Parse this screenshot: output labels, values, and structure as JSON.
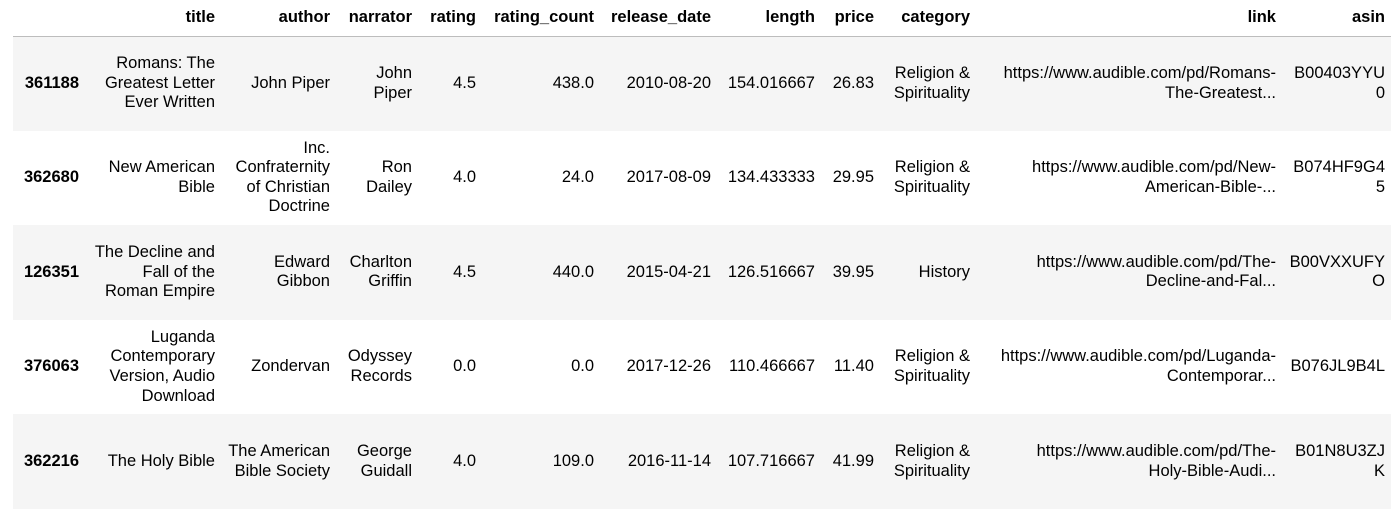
{
  "columns": {
    "index": "",
    "title": "title",
    "author": "author",
    "narrator": "narrator",
    "rating": "rating",
    "rating_count": "rating_count",
    "release_date": "release_date",
    "length": "length",
    "price": "price",
    "category": "category",
    "link": "link",
    "asin": "asin"
  },
  "rows": [
    {
      "index": "361188",
      "title": "Romans: The Greatest Letter Ever Written",
      "author": "John Piper",
      "narrator": "John Piper",
      "rating": "4.5",
      "rating_count": "438.0",
      "release_date": "2010-08-20",
      "length": "154.016667",
      "price": "26.83",
      "category": "Religion & Spirituality",
      "link_1": "https://www.audible.com/pd/Romans-",
      "link_2": "The-Greatest...",
      "asin": "B00403YYU0"
    },
    {
      "index": "362680",
      "title": "New American Bible",
      "author": "Inc. Confraternity of Christian Doctrine",
      "narrator": "Ron Dailey",
      "rating": "4.0",
      "rating_count": "24.0",
      "release_date": "2017-08-09",
      "length": "134.433333",
      "price": "29.95",
      "category": "Religion & Spirituality",
      "link_1": "https://www.audible.com/pd/New-",
      "link_2": "American-Bible-...",
      "asin": "B074HF9G45"
    },
    {
      "index": "126351",
      "title": "The Decline and Fall of the Roman Empire",
      "author": "Edward Gibbon",
      "narrator": "Charlton Griffin",
      "rating": "4.5",
      "rating_count": "440.0",
      "release_date": "2015-04-21",
      "length": "126.516667",
      "price": "39.95",
      "category": "History",
      "link_1": "https://www.audible.com/pd/The-",
      "link_2": "Decline-and-Fal...",
      "asin": "B00VXXUFYO"
    },
    {
      "index": "376063",
      "title": "Luganda Contemporary Version, Audio Download",
      "author": "Zondervan",
      "narrator": "Odyssey Records",
      "rating": "0.0",
      "rating_count": "0.0",
      "release_date": "2017-12-26",
      "length": "110.466667",
      "price": "11.40",
      "category": "Religion & Spirituality",
      "link_1": "https://www.audible.com/pd/Luganda-",
      "link_2": "Contemporar...",
      "asin": "B076JL9B4L"
    },
    {
      "index": "362216",
      "title": "The Holy Bible",
      "author": "The American Bible Society",
      "narrator": "George Guidall",
      "rating": "4.0",
      "rating_count": "109.0",
      "release_date": "2016-11-14",
      "length": "107.716667",
      "price": "41.99",
      "category": "Religion & Spirituality",
      "link_1": "https://www.audible.com/pd/The-",
      "link_2": "Holy-Bible-Audi...",
      "asin": "B01N8U3ZJK"
    }
  ]
}
